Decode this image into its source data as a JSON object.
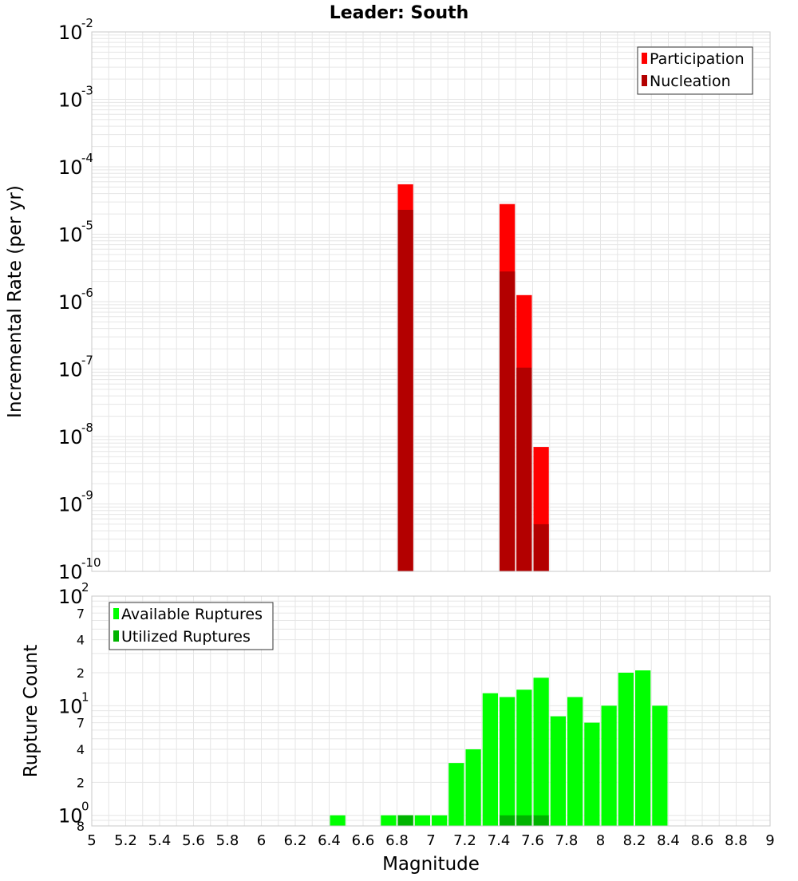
{
  "title": "Leader: South",
  "colors": {
    "participation": "#ff0000",
    "nucleation": "#b30000",
    "available": "#00ff00",
    "utilized": "#00b300",
    "grid": "#e6e6e6",
    "frame": "#c8c8c8"
  },
  "chart_data": [
    {
      "type": "bar",
      "name": "rates",
      "title": "Leader: South",
      "xlabel": "",
      "ylabel": "Incremental Rate (per yr)",
      "y_scale": "log",
      "xlim": [
        5,
        9
      ],
      "ylim": [
        1e-10,
        0.01
      ],
      "bin_width": 0.1,
      "grid": true,
      "legend_placement": "top-right",
      "y_major_ticks": [
        {
          "value": 1e-10,
          "label": "10",
          "exp": "-10"
        },
        {
          "value": 1e-09,
          "label": "10",
          "exp": "-9"
        },
        {
          "value": 1e-08,
          "label": "10",
          "exp": "-8"
        },
        {
          "value": 1e-07,
          "label": "10",
          "exp": "-7"
        },
        {
          "value": 1e-06,
          "label": "10",
          "exp": "-6"
        },
        {
          "value": 1e-05,
          "label": "10",
          "exp": "-5"
        },
        {
          "value": 0.0001,
          "label": "10",
          "exp": "-4"
        },
        {
          "value": 0.001,
          "label": "10",
          "exp": "-3"
        },
        {
          "value": 0.01,
          "label": "10",
          "exp": "-2"
        }
      ],
      "series": [
        {
          "name": "Participation",
          "color": "#ff0000",
          "x": [
            6.85,
            7.45,
            7.55,
            7.65
          ],
          "values": [
            5.5e-05,
            2.8e-05,
            1.25e-06,
            7e-09
          ]
        },
        {
          "name": "Nucleation",
          "color": "#b30000",
          "x": [
            6.85,
            7.45,
            7.55,
            7.65
          ],
          "values": [
            2.3e-05,
            2.8e-06,
            1.05e-07,
            5e-10
          ]
        }
      ]
    },
    {
      "type": "bar",
      "name": "counts",
      "xlabel": "Magnitude",
      "ylabel": "Rupture Count",
      "y_scale": "log",
      "xlim": [
        5,
        9
      ],
      "ylim": [
        0.8,
        100
      ],
      "bin_width": 0.1,
      "grid": true,
      "legend_placement": "top-left",
      "y_major_ticks": [
        {
          "value": 1,
          "label": "10",
          "exp": "0"
        },
        {
          "value": 10,
          "label": "10",
          "exp": "1"
        },
        {
          "value": 100,
          "label": "10",
          "exp": "2"
        }
      ],
      "y_minor_labels": [
        {
          "value": 0.8,
          "label": "8"
        },
        {
          "value": 2,
          "label": "2"
        },
        {
          "value": 4,
          "label": "4"
        },
        {
          "value": 7,
          "label": "7"
        },
        {
          "value": 20,
          "label": "2"
        },
        {
          "value": 40,
          "label": "4"
        },
        {
          "value": 70,
          "label": "7"
        }
      ],
      "x_ticks": [
        "5",
        "5.2",
        "5.4",
        "5.6",
        "5.8",
        "6",
        "6.2",
        "6.4",
        "6.6",
        "6.8",
        "7",
        "7.2",
        "7.4",
        "7.6",
        "7.8",
        "8",
        "8.2",
        "8.4",
        "8.6",
        "8.8",
        "9"
      ],
      "series": [
        {
          "name": "Available Ruptures",
          "color": "#00ff00",
          "x": [
            6.45,
            6.75,
            6.85,
            6.95,
            7.05,
            7.15,
            7.25,
            7.35,
            7.45,
            7.55,
            7.65,
            7.75,
            7.85,
            7.95,
            8.05,
            8.15,
            8.25,
            8.35
          ],
          "values": [
            1,
            1,
            1,
            1,
            1,
            3,
            4,
            13,
            12,
            14,
            18,
            8,
            12,
            7,
            10,
            20,
            21,
            10
          ]
        },
        {
          "name": "Utilized Ruptures",
          "color": "#00b300",
          "x": [
            6.85,
            7.45,
            7.55,
            7.65
          ],
          "values": [
            1,
            1,
            1,
            1
          ]
        }
      ]
    }
  ]
}
